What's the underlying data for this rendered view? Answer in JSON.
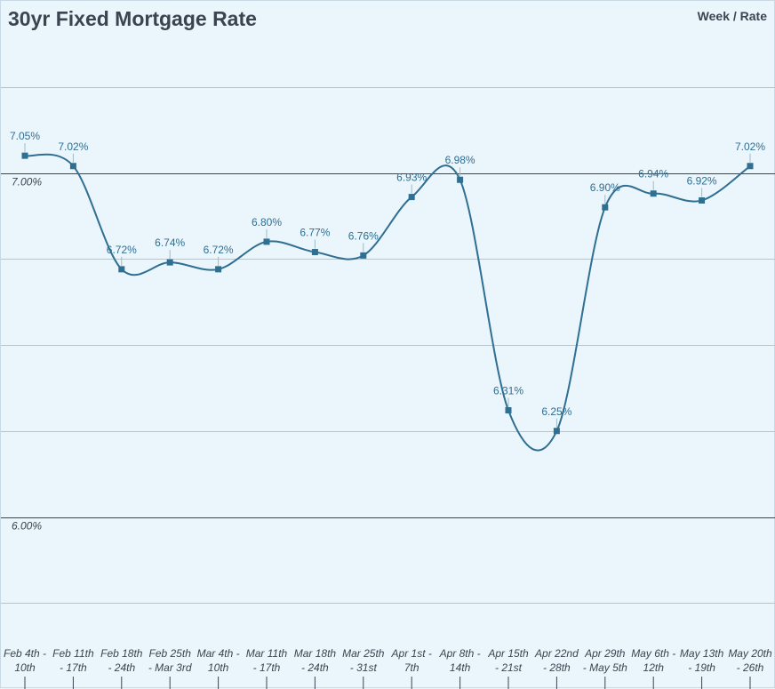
{
  "header": {
    "title": "30yr Fixed Mortgage Rate",
    "legend_text": "Week / Rate"
  },
  "colors": {
    "background": "#ebf5fc",
    "line": "#2f6f91",
    "text": "#3b4550"
  },
  "chart_data": {
    "type": "line",
    "title": "30yr Fixed Mortgage Rate",
    "categories": [
      [
        "Feb 4th -",
        "10th"
      ],
      [
        "Feb 11th",
        "- 17th"
      ],
      [
        "Feb 18th",
        "- 24th"
      ],
      [
        "Feb 25th",
        "- Mar 3rd"
      ],
      [
        "Mar 4th -",
        "10th"
      ],
      [
        "Mar 11th",
        "- 17th"
      ],
      [
        "Mar 18th",
        "- 24th"
      ],
      [
        "Mar 25th",
        "- 31st"
      ],
      [
        "Apr 1st -",
        "7th"
      ],
      [
        "Apr 8th -",
        "14th"
      ],
      [
        "Apr 15th",
        "- 21st"
      ],
      [
        "Apr 22nd",
        "- 28th"
      ],
      [
        "Apr 29th",
        "- May 5th"
      ],
      [
        "May 6th -",
        "12th"
      ],
      [
        "May 13th",
        "- 19th"
      ],
      [
        "May 20th",
        "- 26th"
      ]
    ],
    "values": [
      7.05,
      7.02,
      6.72,
      6.74,
      6.72,
      6.8,
      6.77,
      6.76,
      6.93,
      6.98,
      6.31,
      6.25,
      6.9,
      6.94,
      6.92,
      7.02
    ],
    "data_labels": [
      "7.05%",
      "7.02%",
      "6.72%",
      "6.74%",
      "6.72%",
      "6.80%",
      "6.77%",
      "6.76%",
      "6.93%",
      "6.98%",
      "6.31%",
      "6.25%",
      "6.90%",
      "6.94%",
      "6.92%",
      "7.02%"
    ],
    "ytick_labels": [
      {
        "value": 7.0,
        "label": "7.00%"
      },
      {
        "value": 6.0,
        "label": "6.00%"
      }
    ],
    "ylim": [
      5.5,
      7.5
    ],
    "grid": true,
    "legend_position": "top-right"
  }
}
